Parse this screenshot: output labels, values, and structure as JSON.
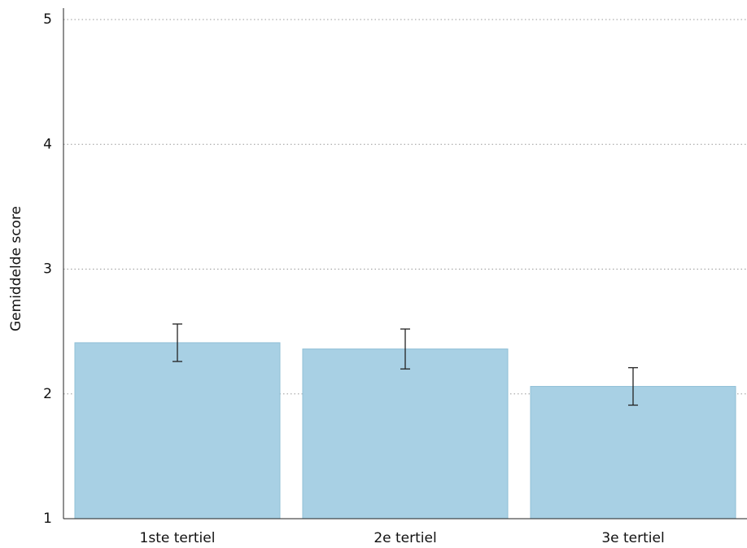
{
  "chart_data": {
    "type": "bar",
    "y_label": "Gemiddelde score",
    "categories": [
      "1ste tertiel",
      "2e tertiel",
      "3e tertiel"
    ],
    "values": [
      2.41,
      2.36,
      2.06
    ],
    "errors": [
      0.15,
      0.16,
      0.15
    ],
    "color": "#a8d0e4",
    "ylim": [
      1,
      5
    ],
    "yticks": [
      1,
      2,
      3,
      4,
      5
    ],
    "grid": true
  }
}
